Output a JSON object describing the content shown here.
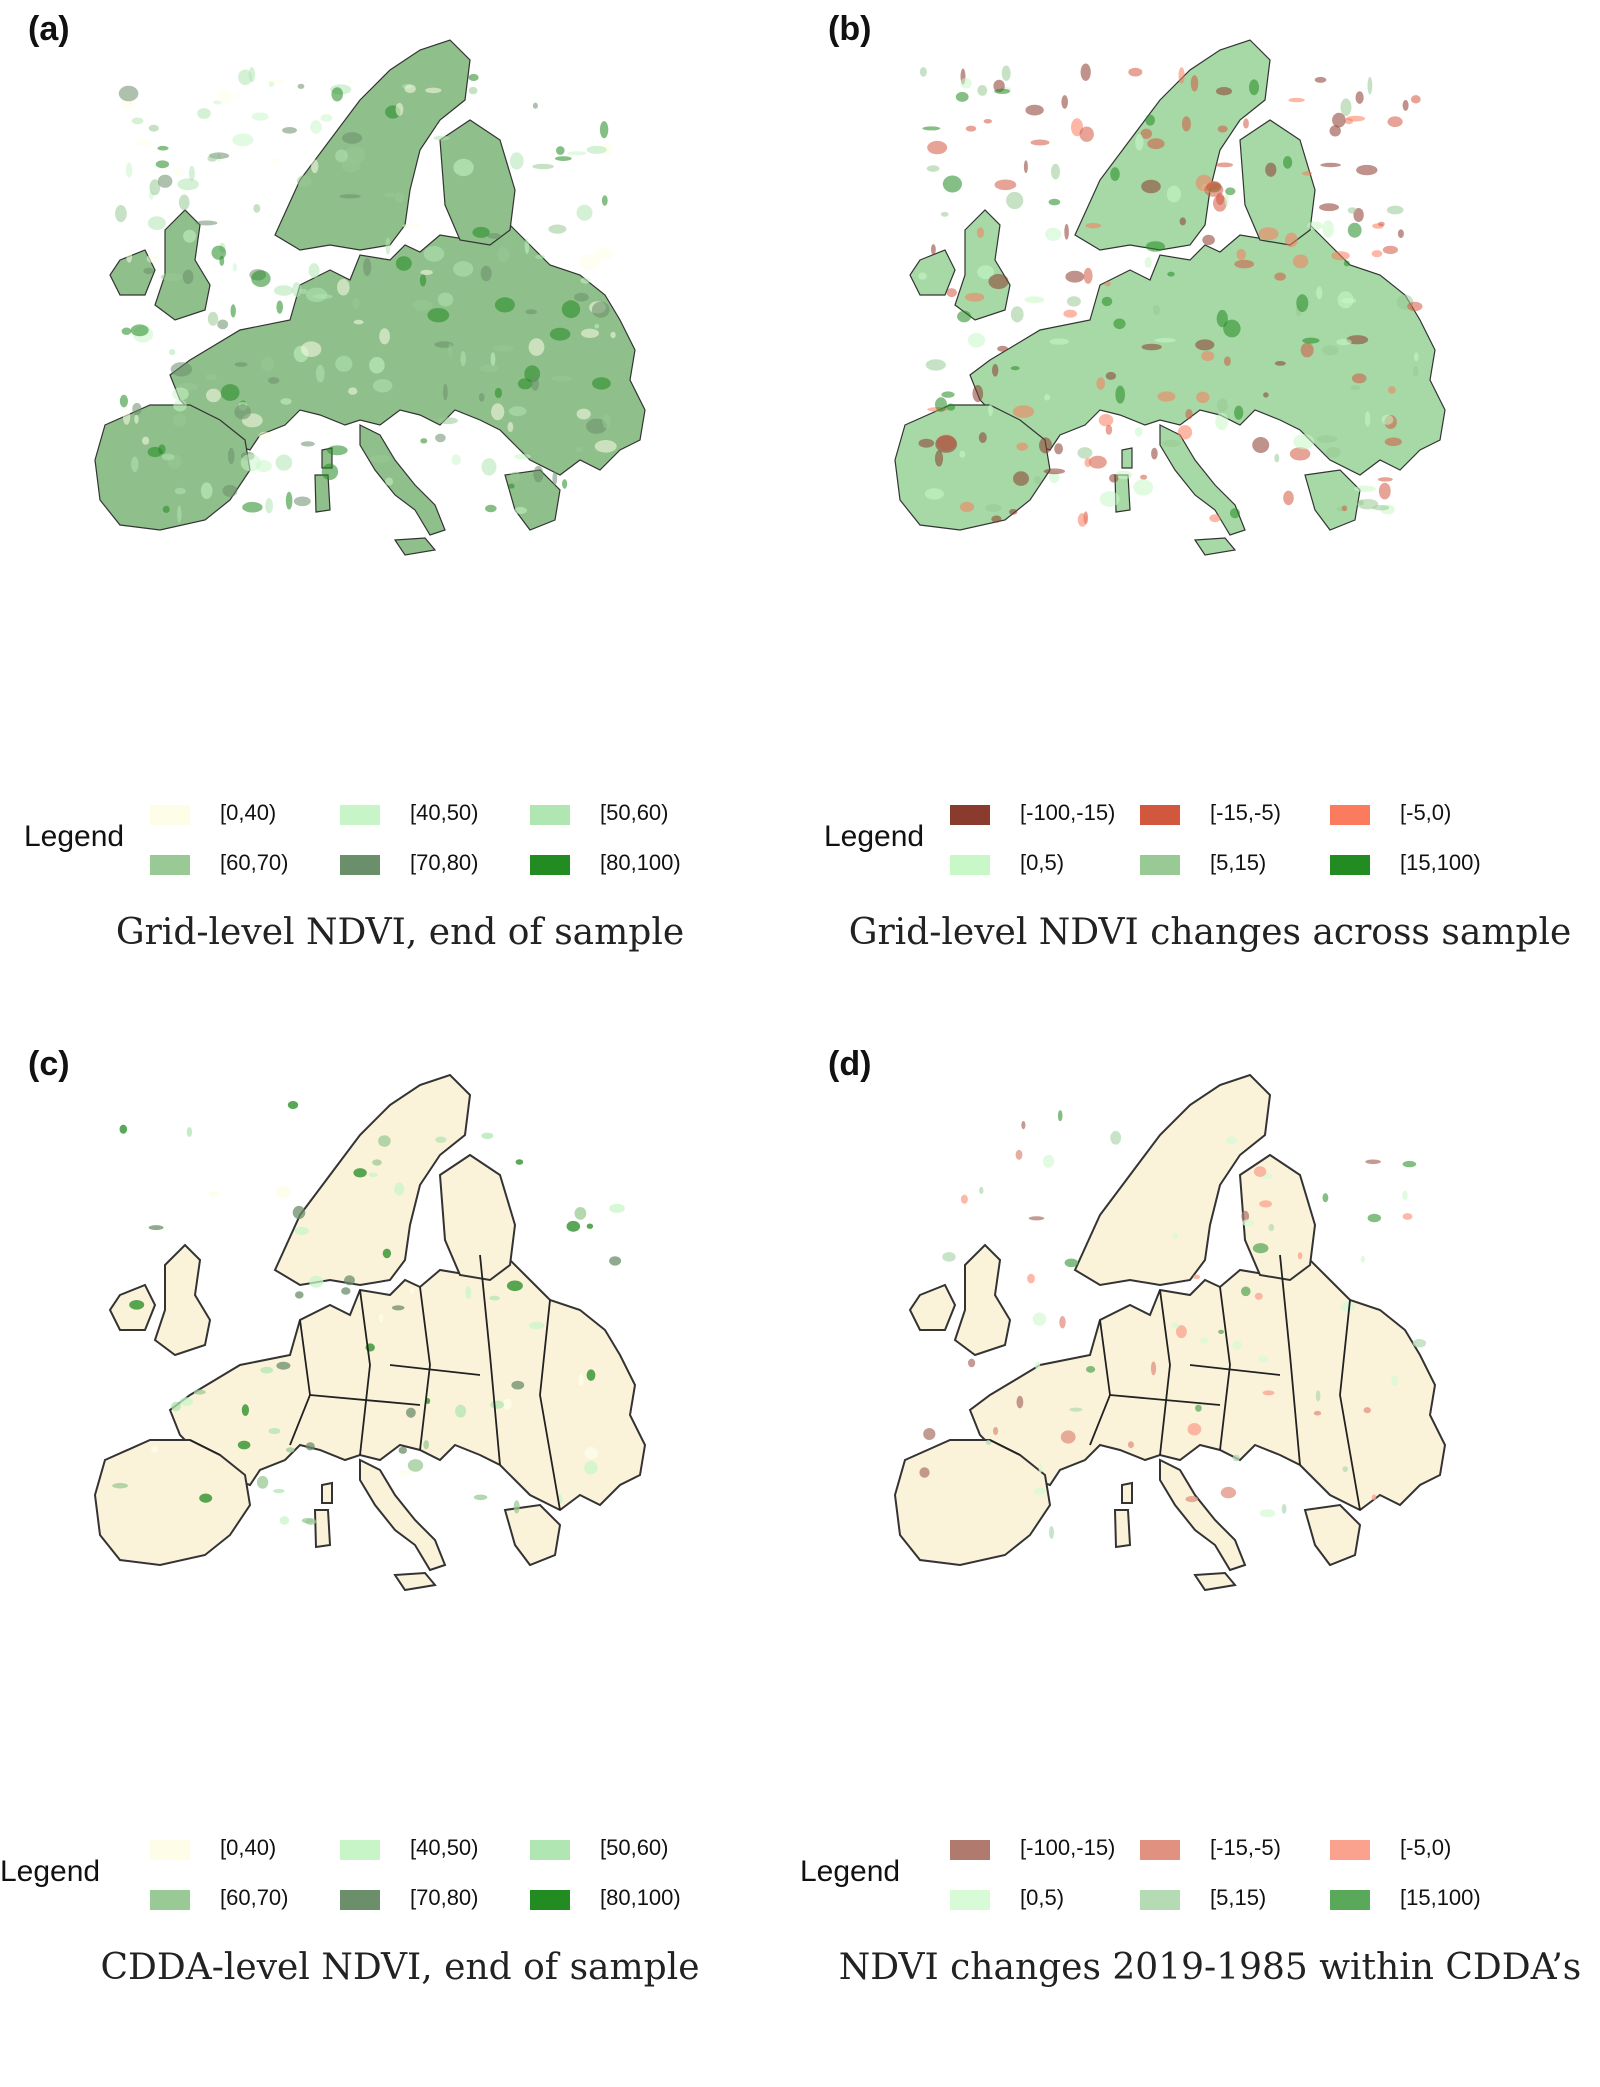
{
  "panels": [
    {
      "id": "a",
      "letter": "(a)",
      "legend_title": "Legend",
      "caption": "Grid-level NDVI, end of sample",
      "base_fill": "#8fbf8a",
      "legend": [
        {
          "label": "[0,40)",
          "color": "#fdfde8"
        },
        {
          "label": "[40,50)",
          "color": "#c8f5c8"
        },
        {
          "label": "[50,60)",
          "color": "#b0e6b2"
        },
        {
          "label": "[60,70)",
          "color": "#99c994"
        },
        {
          "label": "[70,80)",
          "color": "#6b8e6b"
        },
        {
          "label": "[80,100)",
          "color": "#228b22"
        }
      ]
    },
    {
      "id": "b",
      "letter": "(b)",
      "legend_title": "Legend",
      "caption": "Grid-level NDVI changes across sample",
      "base_fill": "#a6d9a6",
      "legend": [
        {
          "label": "[-100,-15)",
          "color": "#8b3a2e"
        },
        {
          "label": "[-15,-5)",
          "color": "#d2573f"
        },
        {
          "label": "[-5,0)",
          "color": "#fa7b5d"
        },
        {
          "label": "[0,5)",
          "color": "#c8f7c8"
        },
        {
          "label": "[5,15)",
          "color": "#99c994"
        },
        {
          "label": "[15,100)",
          "color": "#228b22"
        }
      ]
    },
    {
      "id": "c",
      "letter": "(c)",
      "legend_title": "Legend",
      "caption": "CDDA-level NDVI, end of sample",
      "base_fill": "#fbf3d9",
      "legend": [
        {
          "label": "[0,40)",
          "color": "#fdfde8"
        },
        {
          "label": "[40,50)",
          "color": "#c8f5c8"
        },
        {
          "label": "[50,60)",
          "color": "#b0e6b2"
        },
        {
          "label": "[60,70)",
          "color": "#99c994"
        },
        {
          "label": "[70,80)",
          "color": "#6b8e6b"
        },
        {
          "label": "[80,100)",
          "color": "#228b22"
        }
      ]
    },
    {
      "id": "d",
      "letter": "(d)",
      "legend_title": "Legend",
      "caption": "NDVI changes 2019-1985 within CDDA’s",
      "base_fill": "#fbf3d9",
      "legend": [
        {
          "label": "[-100,-15)",
          "color": "#b07a6f"
        },
        {
          "label": "[-15,-5)",
          "color": "#e09180"
        },
        {
          "label": "[-5,0)",
          "color": "#fba28e"
        },
        {
          "label": "[0,5)",
          "color": "#d7fad7"
        },
        {
          "label": "[5,15)",
          "color": "#b5dbb5"
        },
        {
          "label": "[15,100)",
          "color": "#5aa85a"
        }
      ]
    }
  ]
}
